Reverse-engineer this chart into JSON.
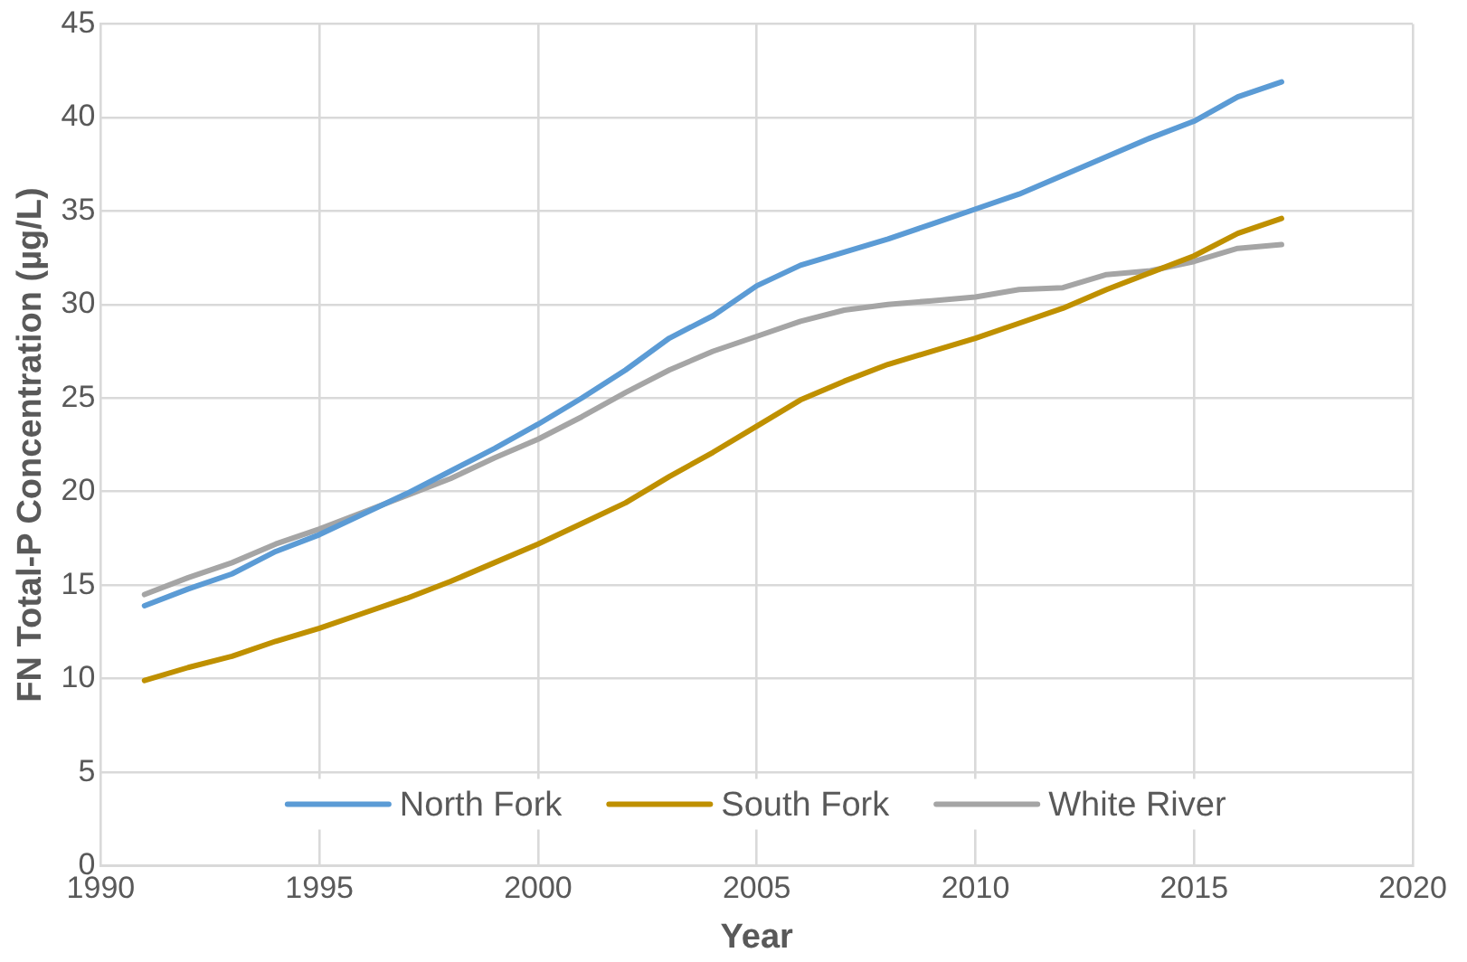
{
  "chart_data": {
    "type": "line",
    "xlabel": "Year",
    "ylabel": "FN Total-P Concentration (µg/L)",
    "x": [
      1991,
      1992,
      1993,
      1994,
      1995,
      1996,
      1997,
      1998,
      1999,
      2000,
      2001,
      2002,
      2003,
      2004,
      2005,
      2006,
      2007,
      2008,
      2009,
      2010,
      2011,
      2012,
      2013,
      2014,
      2015,
      2016,
      2017
    ],
    "series": [
      {
        "name": "North Fork",
        "color": "#5b9bd5",
        "values": [
          13.9,
          14.8,
          15.6,
          16.8,
          17.7,
          18.8,
          19.9,
          21.1,
          22.3,
          23.6,
          25.0,
          26.5,
          28.2,
          29.4,
          31.0,
          32.1,
          32.8,
          33.5,
          34.3,
          35.1,
          35.9,
          36.9,
          37.9,
          38.9,
          39.8,
          41.1,
          41.9
        ]
      },
      {
        "name": "South Fork",
        "color": "#bf9000",
        "values": [
          9.9,
          10.6,
          11.2,
          12.0,
          12.7,
          13.5,
          14.3,
          15.2,
          16.2,
          17.2,
          18.3,
          19.4,
          20.8,
          22.1,
          23.5,
          24.9,
          25.9,
          26.8,
          27.5,
          28.2,
          29.0,
          29.8,
          30.8,
          31.7,
          32.6,
          33.8,
          34.6
        ]
      },
      {
        "name": "White River",
        "color": "#a5a5a5",
        "values": [
          14.5,
          15.4,
          16.2,
          17.2,
          18.0,
          18.9,
          19.8,
          20.7,
          21.8,
          22.8,
          24.0,
          25.3,
          26.5,
          27.5,
          28.3,
          29.1,
          29.7,
          30.0,
          30.2,
          30.4,
          30.8,
          30.9,
          31.6,
          31.8,
          32.3,
          33.0,
          33.2
        ]
      }
    ],
    "xlim": [
      1990,
      2020
    ],
    "xticks": [
      1990,
      1995,
      2000,
      2005,
      2010,
      2015,
      2020
    ],
    "ylim": [
      0,
      45
    ],
    "yticks": [
      0,
      5,
      10,
      15,
      20,
      25,
      30,
      35,
      40,
      45
    ],
    "grid": true,
    "legend": "bottom",
    "marker": "none",
    "line_style": "solid"
  }
}
